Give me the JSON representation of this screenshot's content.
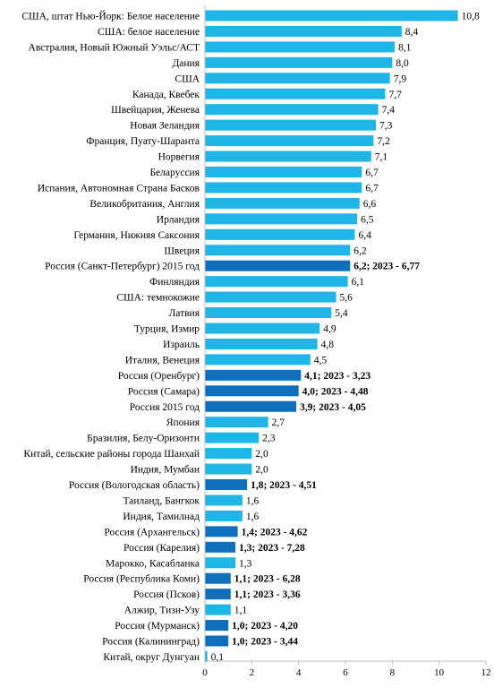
{
  "chart_data": {
    "type": "bar",
    "orientation": "horizontal",
    "title": "",
    "xlabel": "",
    "ylabel": "",
    "xlim": [
      0,
      12
    ],
    "x_ticks": [
      0,
      2,
      4,
      6,
      8,
      10,
      12
    ],
    "grid": false,
    "legend": "none",
    "colors": {
      "standard": "#1fb5e6",
      "russia": "#0f6fbd"
    },
    "bars": [
      {
        "category": "США, штат Нью-Йорк: Белое население",
        "value": 10.8,
        "label": "10,8",
        "highlight": false
      },
      {
        "category": "США: белое население",
        "value": 8.4,
        "label": "8,4",
        "highlight": false
      },
      {
        "category": "Австралия, Новый Южный Уэльс/АСТ",
        "value": 8.1,
        "label": "8,1",
        "highlight": false
      },
      {
        "category": "Дания",
        "value": 8.0,
        "label": "8,0",
        "highlight": false
      },
      {
        "category": "США",
        "value": 7.9,
        "label": "7,9",
        "highlight": false
      },
      {
        "category": "Канада, Квебек",
        "value": 7.7,
        "label": "7,7",
        "highlight": false
      },
      {
        "category": "Швейцария, Женева",
        "value": 7.4,
        "label": "7,4",
        "highlight": false
      },
      {
        "category": "Новая Зеландия",
        "value": 7.3,
        "label": "7,3",
        "highlight": false
      },
      {
        "category": "Франция, Пуату-Шаранта",
        "value": 7.2,
        "label": "7,2",
        "highlight": false
      },
      {
        "category": "Норвегия",
        "value": 7.1,
        "label": "7,1",
        "highlight": false
      },
      {
        "category": "Беларуссия",
        "value": 6.7,
        "label": "6,7",
        "highlight": false
      },
      {
        "category": "Испания, Автономная Страна Басков",
        "value": 6.7,
        "label": "6,7",
        "highlight": false
      },
      {
        "category": "Великобритания, Англия",
        "value": 6.6,
        "label": "6,6",
        "highlight": false
      },
      {
        "category": "Ирландия",
        "value": 6.5,
        "label": "6,5",
        "highlight": false
      },
      {
        "category": "Германия, Нижняя Саксония",
        "value": 6.4,
        "label": "6,4",
        "highlight": false
      },
      {
        "category": "Швеция",
        "value": 6.2,
        "label": "6,2",
        "highlight": false
      },
      {
        "category": "Россия (Санкт-Петербург) 2015 год",
        "value": 6.2,
        "label": "6,2; 2023 - 6,77",
        "highlight": true
      },
      {
        "category": "Финляндия",
        "value": 6.1,
        "label": "6,1",
        "highlight": false
      },
      {
        "category": "США: темнокожие",
        "value": 5.6,
        "label": "5,6",
        "highlight": false
      },
      {
        "category": "Латвия",
        "value": 5.4,
        "label": "5,4",
        "highlight": false
      },
      {
        "category": "Турция, Измир",
        "value": 4.9,
        "label": "4,9",
        "highlight": false
      },
      {
        "category": "Израиль",
        "value": 4.8,
        "label": "4,8",
        "highlight": false
      },
      {
        "category": "Италия, Венеция",
        "value": 4.5,
        "label": "4,5",
        "highlight": false
      },
      {
        "category": "Россия (Оренбург)",
        "value": 4.1,
        "label": "4,1; 2023 - 3,23",
        "highlight": true
      },
      {
        "category": "Россия (Самара)",
        "value": 4.0,
        "label": "4,0; 2023 - 4,48",
        "highlight": true
      },
      {
        "category": "Россия 2015 год",
        "value": 3.9,
        "label": "3,9; 2023 - 4,05",
        "highlight": true
      },
      {
        "category": "Япония",
        "value": 2.7,
        "label": "2,7",
        "highlight": false
      },
      {
        "category": "Бразилия, Белу-Оризонти",
        "value": 2.3,
        "label": "2,3",
        "highlight": false
      },
      {
        "category": "Китай, сельские районы города Шанхай",
        "value": 2.0,
        "label": "2,0",
        "highlight": false
      },
      {
        "category": "Индия, Мумбаи",
        "value": 2.0,
        "label": "2,0",
        "highlight": false
      },
      {
        "category": "Россия (Вологодская область)",
        "value": 1.8,
        "label": "1,8; 2023 - 4,51",
        "highlight": true
      },
      {
        "category": "Таиланд, Бангкок",
        "value": 1.6,
        "label": "1,6",
        "highlight": false
      },
      {
        "category": "Индия, Тамилнад",
        "value": 1.6,
        "label": "1,6",
        "highlight": false
      },
      {
        "category": "Россия (Архангельск)",
        "value": 1.4,
        "label": "1,4; 2023 - 4,62",
        "highlight": true
      },
      {
        "category": "Россия (Карелия)",
        "value": 1.3,
        "label": "1,3; 2023 - 7,28",
        "highlight": true
      },
      {
        "category": "Марокко, Касабланка",
        "value": 1.3,
        "label": "1,3",
        "highlight": false
      },
      {
        "category": "Россия (Республика Коми)",
        "value": 1.1,
        "label": "1,1; 2023 - 6,28",
        "highlight": true
      },
      {
        "category": "Россия (Псков)",
        "value": 1.1,
        "label": "1,1; 2023 - 3,36",
        "highlight": true
      },
      {
        "category": "Алжир, Тизи-Узу",
        "value": 1.1,
        "label": "1,1",
        "highlight": false
      },
      {
        "category": "Россия (Мурманск)",
        "value": 1.0,
        "label": "1,0; 2023 - 4,20",
        "highlight": true
      },
      {
        "category": "Россия (Калининград)",
        "value": 1.0,
        "label": "1,0; 2023 - 3,44",
        "highlight": true
      },
      {
        "category": "Китай, округ Дунгуан",
        "value": 0.1,
        "label": "0,1",
        "highlight": false
      }
    ]
  }
}
